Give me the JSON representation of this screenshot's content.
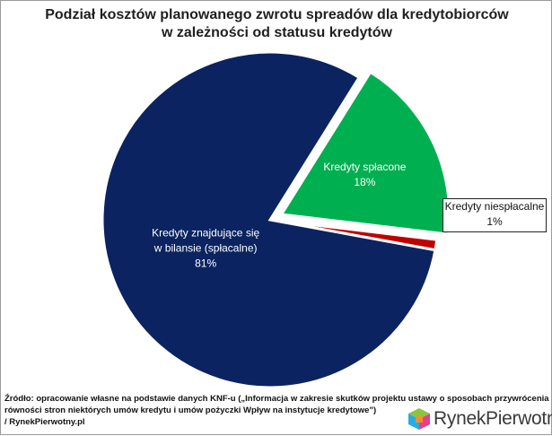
{
  "chart_data": {
    "type": "pie",
    "title_lines": [
      "Podział kosztów planowanego zwrotu spreadów dla kredytobiorców",
      "w zależności od statusu kredytów"
    ],
    "slices": [
      {
        "label_lines": [
          "Kredyty spłacone"
        ],
        "value": 18,
        "value_label": "18%",
        "color": "#00b050",
        "text_color": "#ffffff"
      },
      {
        "label_lines": [
          "Kredyty niespłacalne"
        ],
        "value": 1,
        "value_label": "1%",
        "color": "#c00000",
        "text_color": "#111111"
      },
      {
        "label_lines": [
          "Kredyty znajdujące się",
          "w bilansie (spłacalne)"
        ],
        "value": 81,
        "value_label": "81%",
        "color": "#0b2360",
        "text_color": "#ffffff"
      }
    ]
  },
  "source_lines": [
    "Źródło: opracowanie własne na podstawie danych KNF-u („Informacja w zakresie skutków projektu ustawy o sposobach przywrócenia",
    "równości stron niektórych umów kredytu i umów pożyczki Wpływ na instytucje kredytowe\")",
    "/ RynekPierwotny.pl"
  ],
  "logo": {
    "text": "RynekPierwotny",
    "icon": "cube-logo-icon",
    "colors": [
      "#8bc53f",
      "#e83e8c",
      "#29abe2",
      "#f7941d"
    ]
  }
}
